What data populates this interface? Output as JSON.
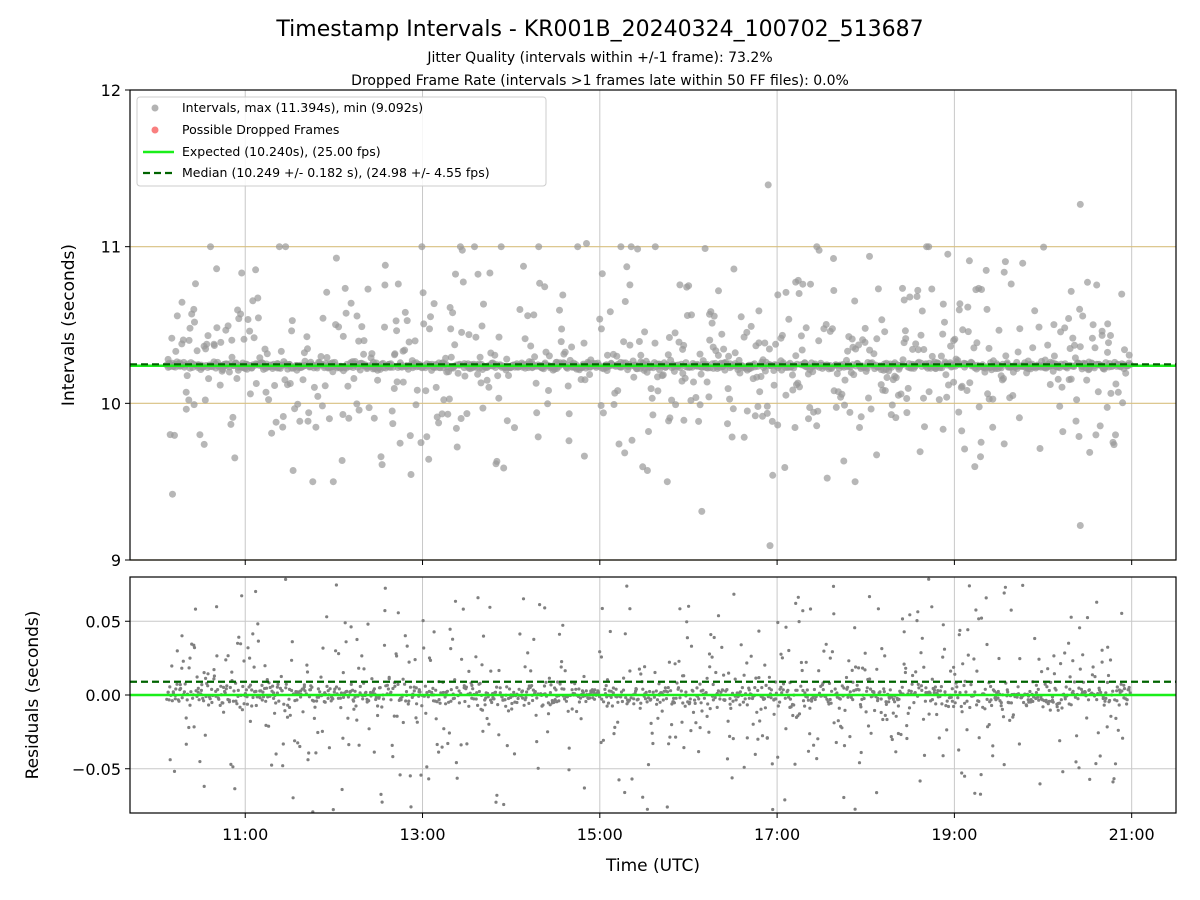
{
  "chart_data": [
    {
      "type": "scatter",
      "panel": "intervals",
      "title": "Timestamp Intervals - KR001B_20240324_100702_513687",
      "subtitle_lines": [
        "Jitter Quality (intervals within +/-1 frame): 73.2%",
        "Dropped Frame Rate (intervals >1 frames late within 50 FF files): 0.0%"
      ],
      "ylabel": "Intervals (seconds)",
      "ylim": [
        9,
        12
      ],
      "yticks": [
        9,
        10,
        11,
        12
      ],
      "ytick_labels": [
        "9",
        "10",
        "11",
        "12"
      ],
      "hlines_frame_bounds": [
        9.0,
        10.0,
        11.0
      ],
      "expected": 10.24,
      "median": 10.249,
      "x_range_hours": [
        10.12,
        20.98
      ],
      "point_summary": {
        "count": 1500,
        "max": 11.394,
        "min": 9.092,
        "center": 10.24
      },
      "legend_position": "upper-left",
      "legend": [
        {
          "label": "Intervals, max (11.394s), min (9.092s)",
          "marker": "circle",
          "color": "#999999"
        },
        {
          "label": "Possible Dropped Frames",
          "marker": "circle",
          "color": "#f87171"
        },
        {
          "label": "Expected (10.240s), (25.00 fps)",
          "marker": "line",
          "color": "#1aee1a"
        },
        {
          "label": "Median (10.249 +/- 0.182 s), (24.98 +/- 4.55 fps)",
          "marker": "dashed",
          "color": "#006400"
        }
      ]
    },
    {
      "type": "scatter",
      "panel": "residuals",
      "xlabel": "Time (UTC)",
      "ylabel": "Residuals (seconds)",
      "ylim": [
        -0.08,
        0.08
      ],
      "yticks": [
        -0.05,
        0.0,
        0.05
      ],
      "ytick_labels": [
        "−0.05",
        "0.00",
        "0.05"
      ],
      "expected": 0.0,
      "median": 0.009,
      "xlim_hours": [
        9.7,
        21.5
      ],
      "xticks_hours": [
        11,
        13,
        15,
        17,
        19,
        21
      ],
      "xtick_labels": [
        "11:00",
        "13:00",
        "15:00",
        "17:00",
        "19:00",
        "21:00"
      ],
      "point_summary": {
        "count": 1500,
        "center": 0.009
      }
    }
  ],
  "colors": {
    "point_gray": "#808080",
    "expected": "#1aee1a",
    "median": "#006400",
    "frame_bound": "#d8c080",
    "grid": "#c8c8c8"
  }
}
